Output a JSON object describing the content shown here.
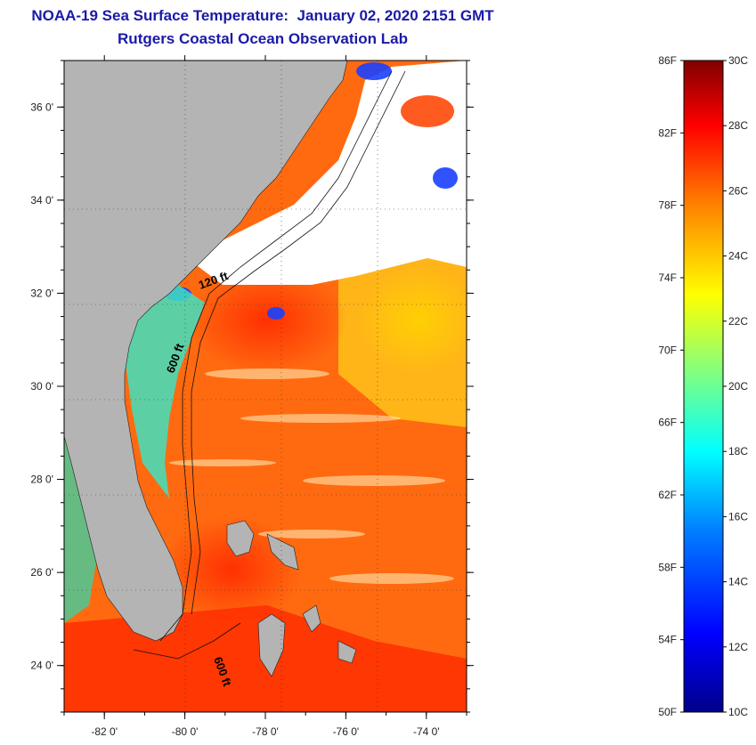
{
  "title": "NOAA-19 Sea Surface Temperature:  January 02, 2020 2151 GMT",
  "subtitle": "Rutgers Coastal Ocean Observation Lab",
  "map": {
    "lon_range": [
      -83.0,
      -73.0
    ],
    "lat_range": [
      23.0,
      37.0
    ],
    "lon_ticks": [
      "-82 0'",
      "-80 0'",
      "-78 0'",
      "-76 0'",
      "-74 0'"
    ],
    "lon_tick_values": [
      -82,
      -80,
      -78,
      -76,
      -74
    ],
    "lat_ticks": [
      "36 0'",
      "34 0'",
      "32 0'",
      "30 0'",
      "28 0'",
      "26 0'",
      "24 0'"
    ],
    "lat_tick_values": [
      36,
      34,
      32,
      30,
      28,
      26,
      24
    ],
    "contour_labels": [
      "120 ft",
      "600 ft",
      "600 ft"
    ],
    "land_color": "#b4b4b4",
    "cloud_color": "#ffffff"
  },
  "colorbar": {
    "fahrenheit_labels": [
      "86F",
      "82F",
      "78F",
      "74F",
      "70F",
      "66F",
      "62F",
      "58F",
      "54F",
      "50F"
    ],
    "celsius_labels": [
      "30C",
      "28C",
      "26C",
      "24C",
      "22C",
      "20C",
      "18C",
      "16C",
      "14C",
      "12C",
      "10C"
    ],
    "f_range": [
      50,
      86
    ],
    "c_range": [
      10,
      30
    ],
    "colors": [
      "#00008a",
      "#0000ff",
      "#0080ff",
      "#00ffff",
      "#80ff80",
      "#ffff00",
      "#ff8000",
      "#ff0000",
      "#800000"
    ]
  }
}
